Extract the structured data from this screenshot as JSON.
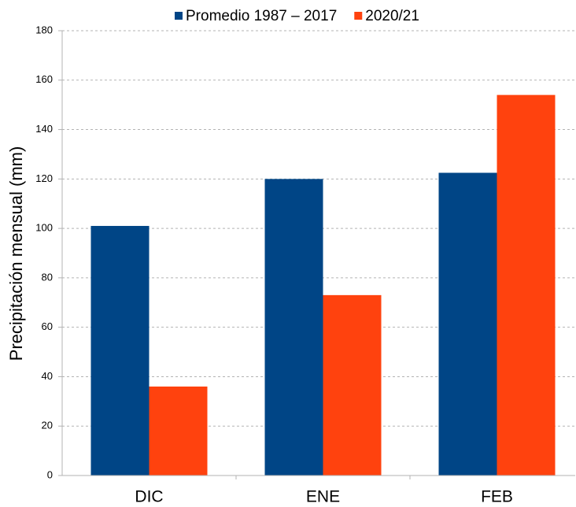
{
  "chart_data": {
    "type": "bar",
    "y_label": "Precipitación mensual (mm)",
    "categories": [
      "DIC",
      "ENE",
      "FEB"
    ],
    "series": [
      {
        "name": "Promedio 1987 – 2017",
        "color": "#004586",
        "values": [
          101,
          120,
          122.5
        ]
      },
      {
        "name": "2020/21",
        "color": "#ff420e",
        "values": [
          36,
          73,
          154
        ]
      }
    ],
    "ylim": [
      0,
      180
    ],
    "yticks": [
      0,
      20,
      40,
      60,
      80,
      100,
      120,
      140,
      160,
      180
    ],
    "grid": true,
    "legend": "top"
  }
}
